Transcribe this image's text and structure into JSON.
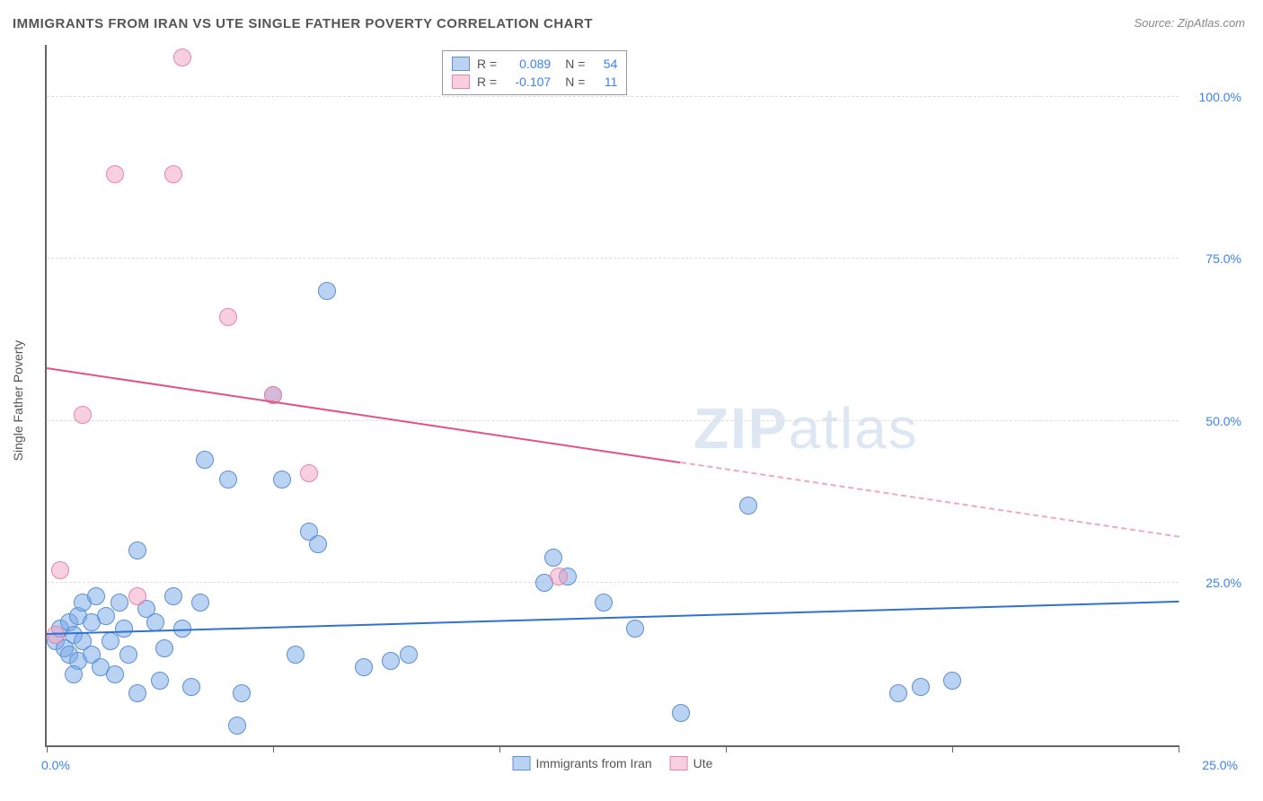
{
  "title": "IMMIGRANTS FROM IRAN VS UTE SINGLE FATHER POVERTY CORRELATION CHART",
  "source_label": "Source: ZipAtlas.com",
  "watermark": {
    "bold": "ZIP",
    "light": "atlas"
  },
  "y_axis_label": "Single Father Poverty",
  "chart": {
    "type": "scatter",
    "xlim": [
      0,
      25
    ],
    "ylim": [
      0,
      108
    ],
    "x_ticks": [
      0,
      5,
      10,
      15,
      20,
      25
    ],
    "y_ticks": [
      25,
      50,
      75,
      100
    ],
    "x_tick_labels": [
      "0.0%",
      "",
      "",
      "",
      "",
      "25.0%"
    ],
    "y_tick_labels": [
      "25.0%",
      "50.0%",
      "75.0%",
      "100.0%"
    ],
    "grid_color": "#dddddd",
    "axis_color": "#666666",
    "y_label_color": "#3b82f6",
    "x_label_color_left": "#3b82f6",
    "x_label_color_right": "#3b82f6",
    "background": "#ffffff",
    "marker_radius": 9,
    "series": [
      {
        "name": "Immigrants from Iran",
        "fill": "rgba(120,168,230,0.5)",
        "stroke": "#5b8fd6",
        "trend_color": "#2f72d4",
        "R": "0.089",
        "N": "54",
        "trend": {
          "x1": 0,
          "y1": 17,
          "x2": 25,
          "y2": 22,
          "dashed_from_x": null
        },
        "points": [
          [
            0.2,
            16
          ],
          [
            0.3,
            18
          ],
          [
            0.4,
            15
          ],
          [
            0.5,
            14
          ],
          [
            0.5,
            19
          ],
          [
            0.6,
            17
          ],
          [
            0.7,
            13
          ],
          [
            0.7,
            20
          ],
          [
            0.8,
            16
          ],
          [
            0.8,
            22
          ],
          [
            1.0,
            14
          ],
          [
            1.0,
            19
          ],
          [
            1.1,
            23
          ],
          [
            1.2,
            12
          ],
          [
            1.3,
            20
          ],
          [
            1.4,
            16
          ],
          [
            1.5,
            11
          ],
          [
            1.6,
            22
          ],
          [
            1.7,
            18
          ],
          [
            1.8,
            14
          ],
          [
            2.0,
            30
          ],
          [
            2.0,
            8
          ],
          [
            2.2,
            21
          ],
          [
            2.4,
            19
          ],
          [
            2.5,
            10
          ],
          [
            2.6,
            15
          ],
          [
            2.8,
            23
          ],
          [
            3.0,
            18
          ],
          [
            3.2,
            9
          ],
          [
            3.4,
            22
          ],
          [
            3.5,
            44
          ],
          [
            4.0,
            41
          ],
          [
            4.2,
            3
          ],
          [
            4.3,
            8
          ],
          [
            5.0,
            54
          ],
          [
            5.2,
            41
          ],
          [
            5.5,
            14
          ],
          [
            5.8,
            33
          ],
          [
            6.0,
            31
          ],
          [
            6.2,
            70
          ],
          [
            7.0,
            12
          ],
          [
            7.6,
            13
          ],
          [
            8.0,
            14
          ],
          [
            11.0,
            25
          ],
          [
            11.2,
            29
          ],
          [
            11.5,
            26
          ],
          [
            12.3,
            22
          ],
          [
            13.0,
            18
          ],
          [
            14.0,
            5
          ],
          [
            15.5,
            37
          ],
          [
            18.8,
            8
          ],
          [
            19.3,
            9
          ],
          [
            20.0,
            10
          ],
          [
            0.6,
            11
          ]
        ]
      },
      {
        "name": "Ute",
        "fill": "rgba(240,160,190,0.5)",
        "stroke": "#e885a8",
        "trend_color": "#e4537f",
        "R": "-0.107",
        "N": "11",
        "trend": {
          "x1": 0,
          "y1": 58,
          "x2": 25,
          "y2": 32,
          "dashed_from_x": 14
        },
        "points": [
          [
            0.2,
            17
          ],
          [
            0.3,
            27
          ],
          [
            0.8,
            51
          ],
          [
            1.5,
            88
          ],
          [
            2.0,
            23
          ],
          [
            2.8,
            88
          ],
          [
            3.0,
            106
          ],
          [
            4.0,
            66
          ],
          [
            5.0,
            54
          ],
          [
            5.8,
            42
          ],
          [
            11.3,
            26
          ]
        ]
      }
    ]
  },
  "stat_box": {
    "label_R": "R =",
    "label_N": "N ="
  },
  "bottom_legend": {
    "items": [
      "Immigrants from Iran",
      "Ute"
    ]
  }
}
